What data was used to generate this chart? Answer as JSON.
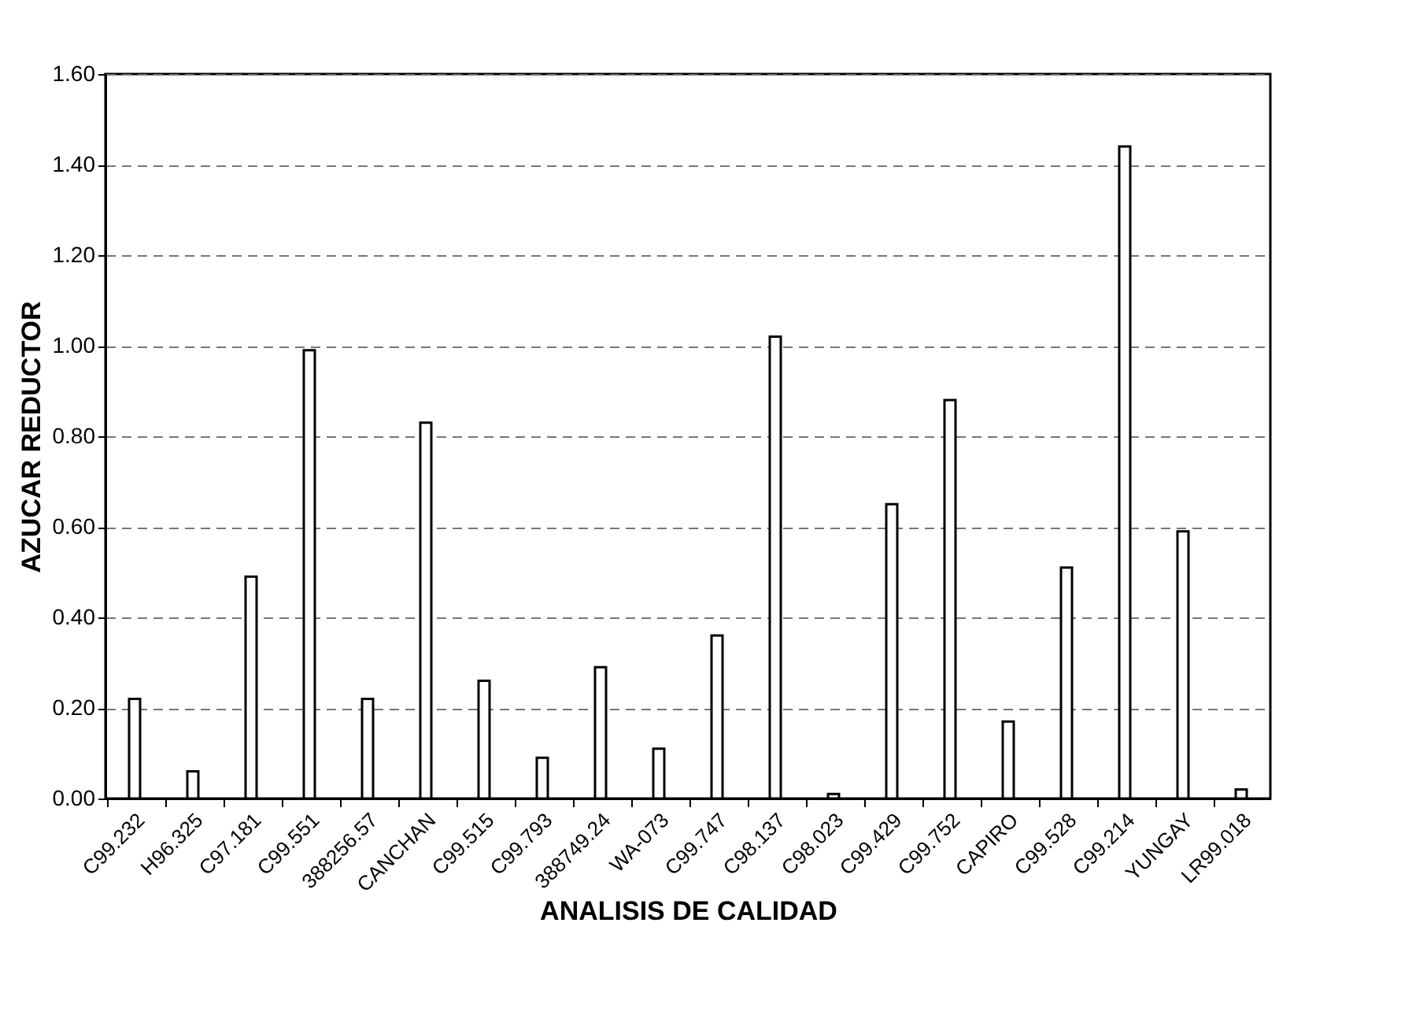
{
  "chart_data": {
    "type": "bar",
    "xlabel": "ANALISIS DE CALIDAD",
    "ylabel": "AZUCAR REDUCTOR",
    "categories": [
      "C99.232",
      "H96.325",
      "C97.181",
      "C99.551",
      "388256.57",
      "CANCHAN",
      "C99.515",
      "C99.793",
      "388749.24",
      "WA-073",
      "C99.747",
      "C98.137",
      "C98.023",
      "C99.429",
      "C99.752",
      "CAPIRO",
      "C99.528",
      "C99.214",
      "YUNGAY",
      "LR99.018"
    ],
    "values": [
      0.22,
      0.06,
      0.49,
      0.99,
      0.22,
      0.83,
      0.26,
      0.09,
      0.29,
      0.11,
      0.36,
      1.02,
      0.01,
      0.65,
      0.88,
      0.17,
      0.51,
      1.44,
      0.59,
      0.02
    ],
    "color": "#ffffff",
    "ylim": [
      0,
      1.6
    ],
    "yticks": [
      {
        "value": 0,
        "label": "0.00"
      },
      {
        "value": 0.2,
        "label": "0.20"
      },
      {
        "value": 0.4,
        "label": "0.40"
      },
      {
        "value": 0.6,
        "label": "0.60"
      },
      {
        "value": 0.8,
        "label": "0.80"
      },
      {
        "value": 1.0,
        "label": "1.00"
      },
      {
        "value": 1.2,
        "label": "1.20"
      },
      {
        "value": 1.4,
        "label": "1.40"
      },
      {
        "value": 1.6,
        "label": "1.60"
      }
    ],
    "grid": "y"
  }
}
